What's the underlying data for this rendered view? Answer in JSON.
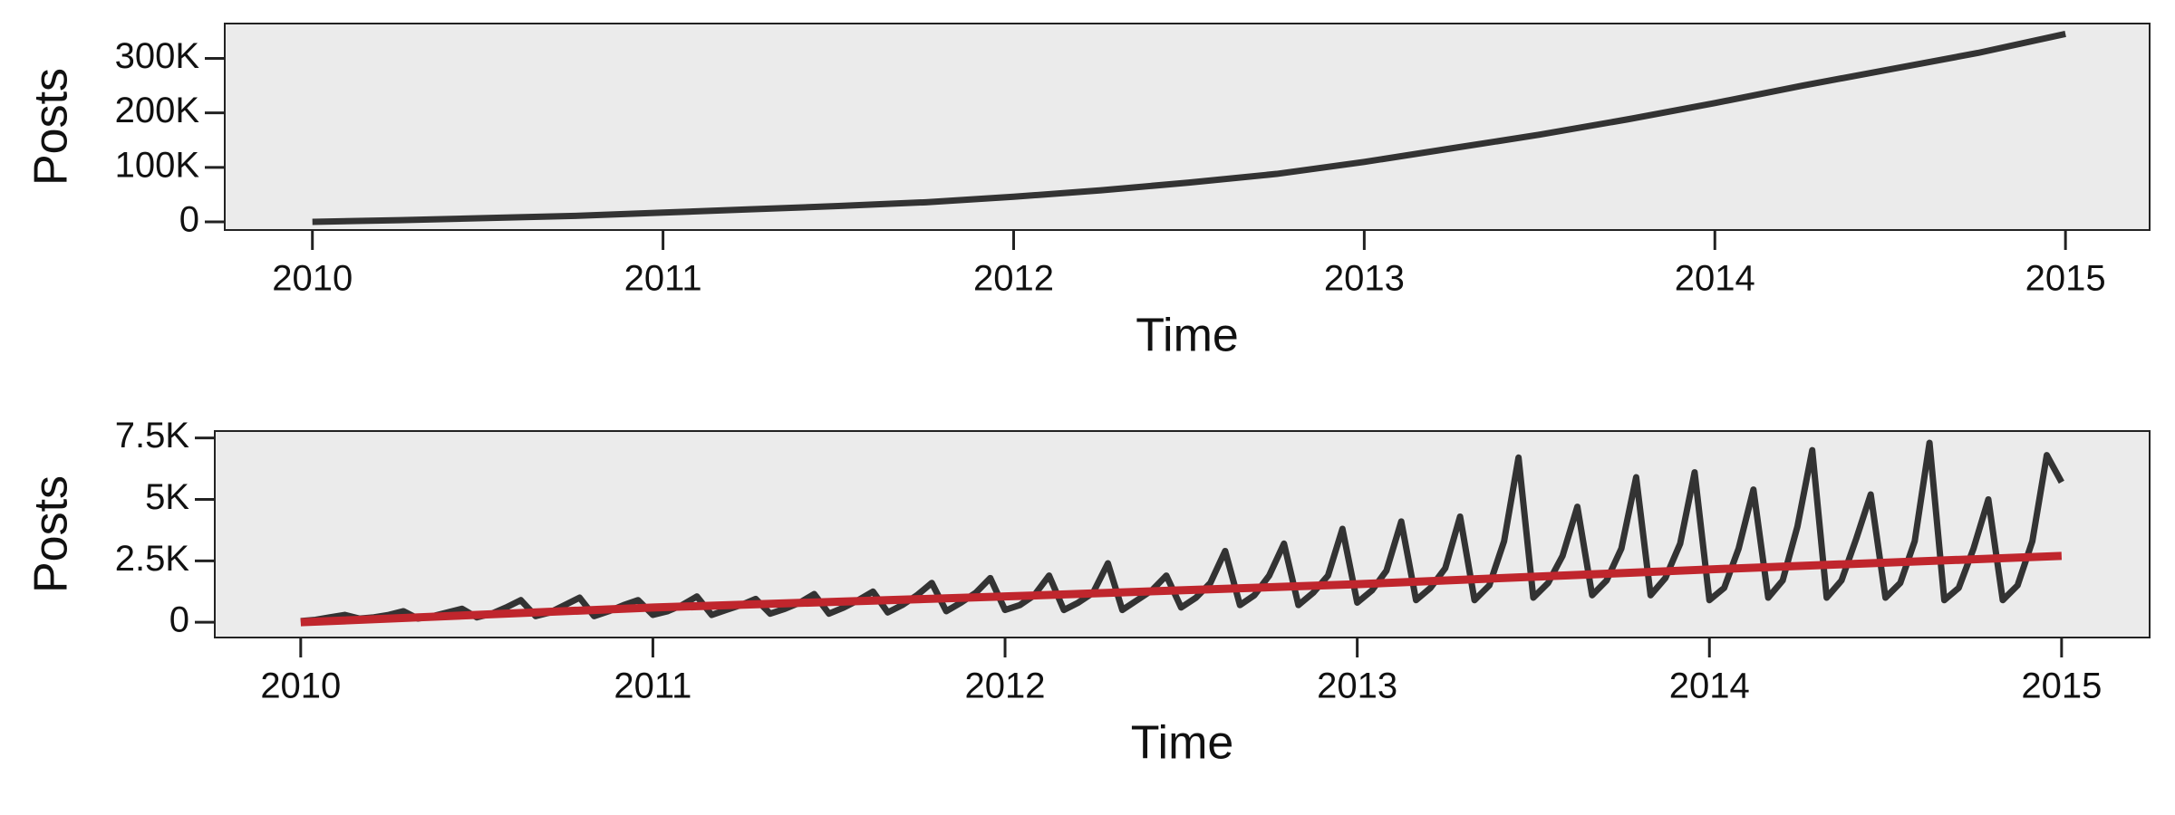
{
  "chart_data": [
    {
      "type": "line",
      "xlabel": "Time",
      "ylabel": "Posts",
      "xlim": [
        2009.75,
        2015.24
      ],
      "xticks": [
        2010,
        2011,
        2012,
        2013,
        2014,
        2015
      ],
      "ylim": [
        -15000,
        364000
      ],
      "yticks": [
        0,
        {
          "value": 100000,
          "label": "100K"
        },
        {
          "value": 200000,
          "label": "200K"
        },
        {
          "value": 300000,
          "label": "300K"
        }
      ],
      "background": "#ebebeb",
      "series": [
        {
          "color": "#333333",
          "x": [
            2010,
            2010.25,
            2010.5,
            2010.75,
            2011,
            2011.25,
            2011.5,
            2011.75,
            2012,
            2012.25,
            2012.5,
            2012.75,
            2013,
            2013.25,
            2013.5,
            2013.75,
            2014,
            2014.25,
            2014.5,
            2014.75,
            2015
          ],
          "values": [
            0,
            3000,
            7000,
            11000,
            17000,
            23000,
            29000,
            36000,
            46000,
            58000,
            72000,
            88000,
            110000,
            135000,
            160000,
            188000,
            218000,
            250000,
            280000,
            310000,
            345000
          ]
        }
      ]
    },
    {
      "type": "line",
      "xlabel": "Time",
      "ylabel": "Posts",
      "xlim": [
        2009.756,
        2015.25
      ],
      "xticks": [
        2010,
        2011,
        2012,
        2013,
        2014,
        2015
      ],
      "ylim": [
        -620,
        7780
      ],
      "yticks": [
        0,
        {
          "value": 2500,
          "label": "2.5K"
        },
        {
          "value": 5000,
          "label": "5K"
        },
        {
          "value": 7500,
          "label": "7.5K"
        }
      ],
      "background": "#ebebeb",
      "series": [
        {
          "color": "#333333",
          "x": [
            2010,
            2010.042,
            2010.083,
            2010.125,
            2010.167,
            2010.208,
            2010.25,
            2010.292,
            2010.333,
            2010.375,
            2010.417,
            2010.458,
            2010.5,
            2010.542,
            2010.583,
            2010.625,
            2010.667,
            2010.708,
            2010.75,
            2010.792,
            2010.833,
            2010.875,
            2010.917,
            2010.958,
            2011,
            2011.042,
            2011.083,
            2011.125,
            2011.167,
            2011.208,
            2011.25,
            2011.292,
            2011.333,
            2011.375,
            2011.417,
            2011.458,
            2011.5,
            2011.542,
            2011.583,
            2011.625,
            2011.667,
            2011.708,
            2011.75,
            2011.792,
            2011.833,
            2011.875,
            2011.917,
            2011.958,
            2012,
            2012.042,
            2012.083,
            2012.125,
            2012.167,
            2012.208,
            2012.25,
            2012.292,
            2012.333,
            2012.375,
            2012.417,
            2012.458,
            2012.5,
            2012.542,
            2012.583,
            2012.625,
            2012.667,
            2012.708,
            2012.75,
            2012.792,
            2012.833,
            2012.875,
            2012.917,
            2012.958,
            2013,
            2013.042,
            2013.083,
            2013.125,
            2013.167,
            2013.208,
            2013.25,
            2013.292,
            2013.333,
            2013.375,
            2013.417,
            2013.458,
            2013.5,
            2013.542,
            2013.583,
            2013.625,
            2013.667,
            2013.708,
            2013.75,
            2013.792,
            2013.833,
            2013.875,
            2013.917,
            2013.958,
            2014,
            2014.042,
            2014.083,
            2014.125,
            2014.167,
            2014.208,
            2014.25,
            2014.292,
            2014.333,
            2014.375,
            2014.417,
            2014.458,
            2014.5,
            2014.542,
            2014.583,
            2014.625,
            2014.667,
            2014.708,
            2014.75,
            2014.792,
            2014.833,
            2014.875,
            2014.917,
            2014.958,
            2015
          ],
          "values": [
            50,
            100,
            200,
            300,
            150,
            200,
            300,
            450,
            150,
            250,
            400,
            550,
            200,
            350,
            600,
            900,
            250,
            400,
            700,
            1000,
            250,
            450,
            700,
            900,
            300,
            450,
            700,
            1050,
            300,
            500,
            700,
            950,
            350,
            550,
            800,
            1150,
            350,
            600,
            900,
            1250,
            400,
            700,
            1100,
            1600,
            450,
            800,
            1200,
            1800,
            500,
            700,
            1100,
            1900,
            500,
            800,
            1200,
            2400,
            500,
            900,
            1300,
            1900,
            600,
            1000,
            1600,
            2900,
            700,
            1100,
            1900,
            3200,
            700,
            1200,
            1900,
            3800,
            800,
            1300,
            2100,
            4100,
            900,
            1400,
            2200,
            4300,
            900,
            1500,
            3300,
            6700,
            1000,
            1600,
            2700,
            4700,
            1100,
            1700,
            3000,
            5900,
            1100,
            1800,
            3200,
            6100,
            900,
            1400,
            3000,
            5400,
            1000,
            1700,
            3900,
            7000,
            1000,
            1700,
            3400,
            5200,
            1000,
            1600,
            3300,
            7300,
            900,
            1400,
            3000,
            5000,
            900,
            1500,
            3300,
            6800,
            5700
          ]
        },
        {
          "color": "#c0262d",
          "x": [
            2010,
            2011,
            2012,
            2013,
            2014,
            2015
          ],
          "values": [
            0,
            600,
            1050,
            1550,
            2150,
            2700
          ]
        }
      ]
    }
  ]
}
